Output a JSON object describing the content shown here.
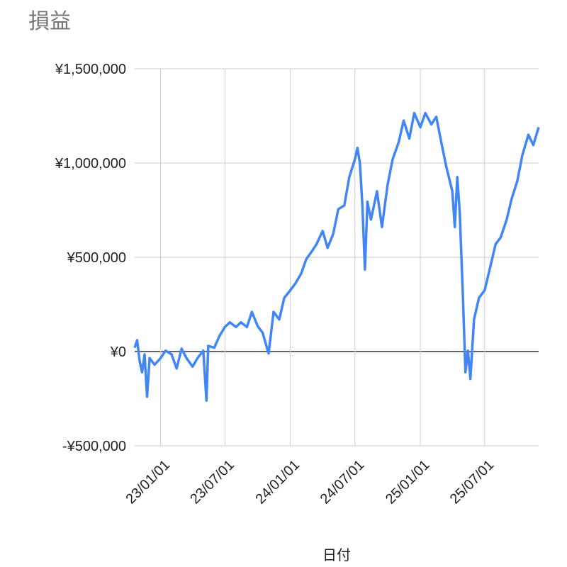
{
  "chart_data": {
    "type": "line",
    "title": "損益",
    "x_label": "日付",
    "x": [
      "2022-10-20",
      "2022-10-27",
      "2022-11-03",
      "2022-11-10",
      "2022-11-17",
      "2022-11-24",
      "2022-12-01",
      "2022-12-15",
      "2023-01-01",
      "2023-01-15",
      "2023-02-01",
      "2023-02-15",
      "2023-03-01",
      "2023-03-15",
      "2023-04-01",
      "2023-04-15",
      "2023-05-01",
      "2023-05-10",
      "2023-05-15",
      "2023-06-01",
      "2023-06-15",
      "2023-07-01",
      "2023-07-15",
      "2023-08-01",
      "2023-08-15",
      "2023-09-01",
      "2023-09-15",
      "2023-10-01",
      "2023-10-15",
      "2023-11-01",
      "2023-11-15",
      "2023-12-01",
      "2023-12-15",
      "2024-01-01",
      "2024-01-15",
      "2024-02-01",
      "2024-02-15",
      "2024-03-01",
      "2024-03-15",
      "2024-04-01",
      "2024-04-15",
      "2024-05-01",
      "2024-05-15",
      "2024-06-01",
      "2024-06-15",
      "2024-07-01",
      "2024-07-08",
      "2024-07-15",
      "2024-07-22",
      "2024-07-29",
      "2024-08-05",
      "2024-08-15",
      "2024-09-01",
      "2024-09-15",
      "2024-10-01",
      "2024-10-15",
      "2024-11-01",
      "2024-11-15",
      "2024-12-01",
      "2024-12-15",
      "2025-01-01",
      "2025-01-15",
      "2025-02-01",
      "2025-02-15",
      "2025-03-01",
      "2025-03-15",
      "2025-04-01",
      "2025-04-08",
      "2025-04-15",
      "2025-04-22",
      "2025-05-01",
      "2025-05-08",
      "2025-05-15",
      "2025-05-22",
      "2025-06-01",
      "2025-06-15",
      "2025-07-01",
      "2025-07-15",
      "2025-08-01",
      "2025-08-15",
      "2025-09-01",
      "2025-09-15",
      "2025-10-01",
      "2025-10-15",
      "2025-11-01",
      "2025-11-15",
      "2025-11-30"
    ],
    "series": [
      {
        "color": "#4285f4",
        "values": [
          20000,
          60000,
          -50000,
          -110000,
          -15000,
          -240000,
          -35000,
          -70000,
          -35000,
          5000,
          -15000,
          -90000,
          15000,
          -35000,
          -80000,
          -35000,
          5000,
          -260000,
          30000,
          20000,
          80000,
          130000,
          155000,
          130000,
          155000,
          130000,
          210000,
          135000,
          100000,
          -10000,
          210000,
          170000,
          285000,
          325000,
          360000,
          415000,
          490000,
          530000,
          570000,
          640000,
          550000,
          625000,
          755000,
          775000,
          925000,
          1020000,
          1080000,
          1000000,
          775000,
          435000,
          795000,
          700000,
          850000,
          660000,
          885000,
          1020000,
          1110000,
          1225000,
          1130000,
          1265000,
          1190000,
          1265000,
          1205000,
          1245000,
          1110000,
          980000,
          850000,
          660000,
          925000,
          735000,
          285000,
          -110000,
          5000,
          -145000,
          170000,
          285000,
          325000,
          435000,
          570000,
          605000,
          700000,
          810000,
          905000,
          1040000,
          1150000,
          1095000,
          1190000
        ]
      }
    ],
    "xlim": [
      "2022-10-20",
      "2025-11-30"
    ],
    "xticks": [
      {
        "value": "2023-01-01",
        "label": "23/01/01"
      },
      {
        "value": "2023-07-01",
        "label": "23/07/01"
      },
      {
        "value": "2024-01-01",
        "label": "24/01/01"
      },
      {
        "value": "2024-07-01",
        "label": "24/07/01"
      },
      {
        "value": "2025-01-01",
        "label": "25/01/01"
      },
      {
        "value": "2025-07-01",
        "label": "25/07/01"
      }
    ],
    "ylim": [
      -500000,
      1500000
    ],
    "yticks": [
      {
        "value": -500000,
        "label": "-¥500,000"
      },
      {
        "value": 0,
        "label": "¥0"
      },
      {
        "value": 500000,
        "label": "¥500,000"
      },
      {
        "value": 1000000,
        "label": "¥1,000,000"
      },
      {
        "value": 1500000,
        "label": "¥1,500,000"
      }
    ],
    "grid": true
  }
}
